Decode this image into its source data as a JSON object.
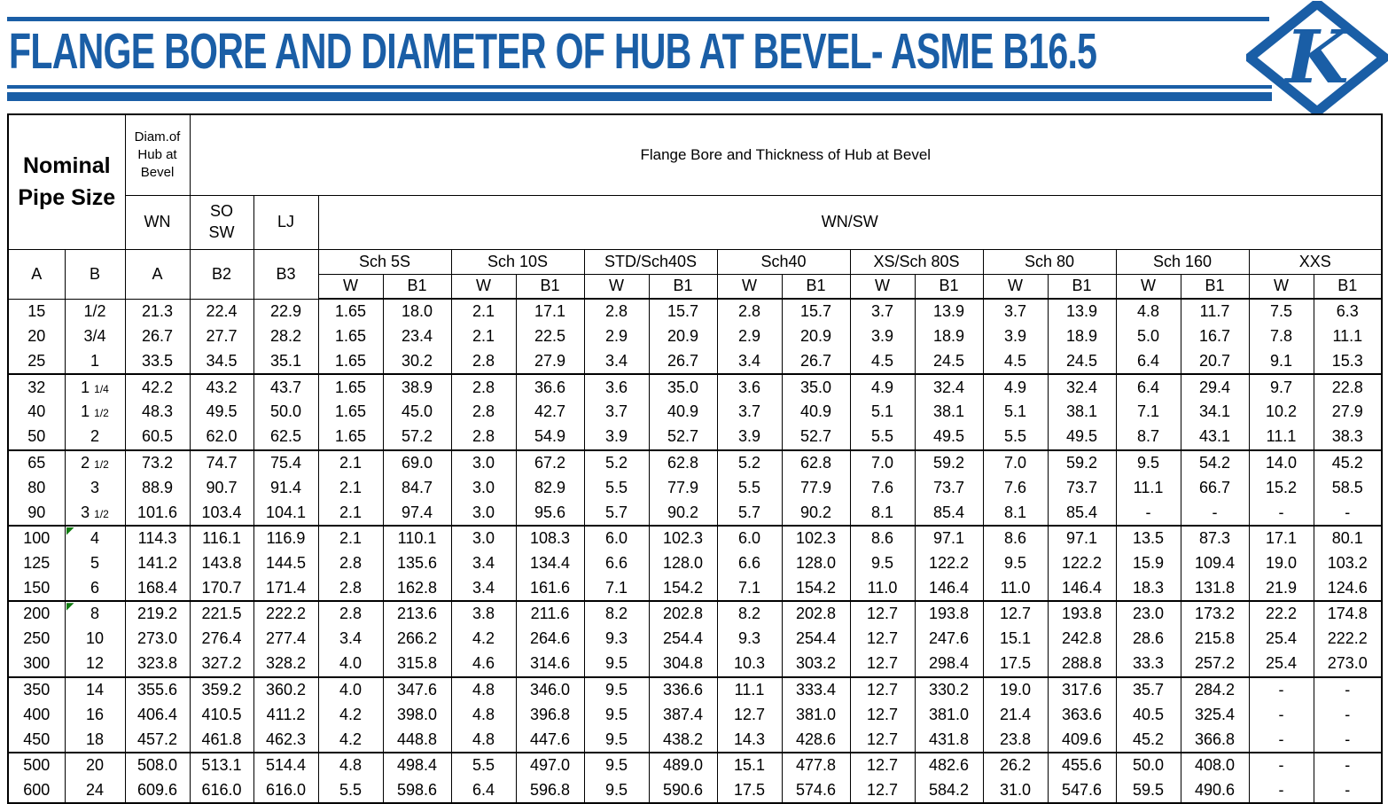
{
  "title": "FLANGE BORE AND DIAMETER OF HUB AT BEVEL- ASME B16.5",
  "logo": {
    "letter": "K"
  },
  "colors": {
    "accent_blue": "#1A5EA6",
    "marker_green": "#107C10",
    "grid_black": "#000000"
  },
  "table": {
    "headers": {
      "nominal_pipe_size": "Nominal\nPipe Size",
      "diam_of_hub": "Diam.of\nHub at\nBevel",
      "flange_bore": "Flange Bore and Thickness of Hub at Bevel",
      "wn": "WN",
      "so_sw": "SO\nSW",
      "lj": "LJ",
      "wn_sw": "WN/SW",
      "col_a": "A",
      "col_b": "B",
      "col_a_wn": "A",
      "col_b2": "B2",
      "col_b3": "B3",
      "schedules": [
        "Sch 5S",
        "Sch 10S",
        "STD/Sch40S",
        "Sch40",
        "XS/Sch 80S",
        "Sch 80",
        "Sch 160",
        "XXS"
      ],
      "sub_w": "W",
      "sub_b1": "B1"
    },
    "rows": [
      {
        "a": "15",
        "b": "1/2",
        "wn_a": "21.3",
        "b2": "22.4",
        "b3": "22.9",
        "vals": [
          "1.65",
          "18.0",
          "2.1",
          "17.1",
          "2.8",
          "15.7",
          "2.8",
          "15.7",
          "3.7",
          "13.9",
          "3.7",
          "13.9",
          "4.8",
          "11.7",
          "7.5",
          "6.3"
        ]
      },
      {
        "a": "20",
        "b": "3/4",
        "wn_a": "26.7",
        "b2": "27.7",
        "b3": "28.2",
        "vals": [
          "1.65",
          "23.4",
          "2.1",
          "22.5",
          "2.9",
          "20.9",
          "2.9",
          "20.9",
          "3.9",
          "18.9",
          "3.9",
          "18.9",
          "5.0",
          "16.7",
          "7.8",
          "11.1"
        ]
      },
      {
        "a": "25",
        "b": "1",
        "wn_a": "33.5",
        "b2": "34.5",
        "b3": "35.1",
        "vals": [
          "1.65",
          "30.2",
          "2.8",
          "27.9",
          "3.4",
          "26.7",
          "3.4",
          "26.7",
          "4.5",
          "24.5",
          "4.5",
          "24.5",
          "6.4",
          "20.7",
          "9.1",
          "15.3"
        ]
      },
      {
        "a": "32",
        "b": "1 1/4",
        "group_start": true,
        "wn_a": "42.2",
        "b2": "43.2",
        "b3": "43.7",
        "vals": [
          "1.65",
          "38.9",
          "2.8",
          "36.6",
          "3.6",
          "35.0",
          "3.6",
          "35.0",
          "4.9",
          "32.4",
          "4.9",
          "32.4",
          "6.4",
          "29.4",
          "9.7",
          "22.8"
        ]
      },
      {
        "a": "40",
        "b": "1 1/2",
        "wn_a": "48.3",
        "b2": "49.5",
        "b3": "50.0",
        "vals": [
          "1.65",
          "45.0",
          "2.8",
          "42.7",
          "3.7",
          "40.9",
          "3.7",
          "40.9",
          "5.1",
          "38.1",
          "5.1",
          "38.1",
          "7.1",
          "34.1",
          "10.2",
          "27.9"
        ]
      },
      {
        "a": "50",
        "b": "2",
        "wn_a": "60.5",
        "b2": "62.0",
        "b3": "62.5",
        "vals": [
          "1.65",
          "57.2",
          "2.8",
          "54.9",
          "3.9",
          "52.7",
          "3.9",
          "52.7",
          "5.5",
          "49.5",
          "5.5",
          "49.5",
          "8.7",
          "43.1",
          "11.1",
          "38.3"
        ]
      },
      {
        "a": "65",
        "b": "2 1/2",
        "group_start": true,
        "wn_a": "73.2",
        "b2": "74.7",
        "b3": "75.4",
        "vals": [
          "2.1",
          "69.0",
          "3.0",
          "67.2",
          "5.2",
          "62.8",
          "5.2",
          "62.8",
          "7.0",
          "59.2",
          "7.0",
          "59.2",
          "9.5",
          "54.2",
          "14.0",
          "45.2"
        ]
      },
      {
        "a": "80",
        "b": "3",
        "wn_a": "88.9",
        "b2": "90.7",
        "b3": "91.4",
        "vals": [
          "2.1",
          "84.7",
          "3.0",
          "82.9",
          "5.5",
          "77.9",
          "5.5",
          "77.9",
          "7.6",
          "73.7",
          "7.6",
          "73.7",
          "11.1",
          "66.7",
          "15.2",
          "58.5"
        ]
      },
      {
        "a": "90",
        "b": "3 1/2",
        "wn_a": "101.6",
        "b2": "103.4",
        "b3": "104.1",
        "vals": [
          "2.1",
          "97.4",
          "3.0",
          "95.6",
          "5.7",
          "90.2",
          "5.7",
          "90.2",
          "8.1",
          "85.4",
          "8.1",
          "85.4",
          "-",
          "-",
          "-",
          "-"
        ]
      },
      {
        "a": "100",
        "b": "4",
        "group_start": true,
        "marker": true,
        "wn_a": "114.3",
        "b2": "116.1",
        "b3": "116.9",
        "vals": [
          "2.1",
          "110.1",
          "3.0",
          "108.3",
          "6.0",
          "102.3",
          "6.0",
          "102.3",
          "8.6",
          "97.1",
          "8.6",
          "97.1",
          "13.5",
          "87.3",
          "17.1",
          "80.1"
        ]
      },
      {
        "a": "125",
        "b": "5",
        "wn_a": "141.2",
        "b2": "143.8",
        "b3": "144.5",
        "vals": [
          "2.8",
          "135.6",
          "3.4",
          "134.4",
          "6.6",
          "128.0",
          "6.6",
          "128.0",
          "9.5",
          "122.2",
          "9.5",
          "122.2",
          "15.9",
          "109.4",
          "19.0",
          "103.2"
        ]
      },
      {
        "a": "150",
        "b": "6",
        "wn_a": "168.4",
        "b2": "170.7",
        "b3": "171.4",
        "vals": [
          "2.8",
          "162.8",
          "3.4",
          "161.6",
          "7.1",
          "154.2",
          "7.1",
          "154.2",
          "11.0",
          "146.4",
          "11.0",
          "146.4",
          "18.3",
          "131.8",
          "21.9",
          "124.6"
        ]
      },
      {
        "a": "200",
        "b": "8",
        "group_start": true,
        "marker": true,
        "wn_a": "219.2",
        "b2": "221.5",
        "b3": "222.2",
        "vals": [
          "2.8",
          "213.6",
          "3.8",
          "211.6",
          "8.2",
          "202.8",
          "8.2",
          "202.8",
          "12.7",
          "193.8",
          "12.7",
          "193.8",
          "23.0",
          "173.2",
          "22.2",
          "174.8"
        ]
      },
      {
        "a": "250",
        "b": "10",
        "wn_a": "273.0",
        "b2": "276.4",
        "b3": "277.4",
        "vals": [
          "3.4",
          "266.2",
          "4.2",
          "264.6",
          "9.3",
          "254.4",
          "9.3",
          "254.4",
          "12.7",
          "247.6",
          "15.1",
          "242.8",
          "28.6",
          "215.8",
          "25.4",
          "222.2"
        ]
      },
      {
        "a": "300",
        "b": "12",
        "wn_a": "323.8",
        "b2": "327.2",
        "b3": "328.2",
        "vals": [
          "4.0",
          "315.8",
          "4.6",
          "314.6",
          "9.5",
          "304.8",
          "10.3",
          "303.2",
          "12.7",
          "298.4",
          "17.5",
          "288.8",
          "33.3",
          "257.2",
          "25.4",
          "273.0"
        ]
      },
      {
        "a": "350",
        "b": "14",
        "group_start": true,
        "wn_a": "355.6",
        "b2": "359.2",
        "b3": "360.2",
        "vals": [
          "4.0",
          "347.6",
          "4.8",
          "346.0",
          "9.5",
          "336.6",
          "11.1",
          "333.4",
          "12.7",
          "330.2",
          "19.0",
          "317.6",
          "35.7",
          "284.2",
          "-",
          "-"
        ]
      },
      {
        "a": "400",
        "b": "16",
        "wn_a": "406.4",
        "b2": "410.5",
        "b3": "411.2",
        "vals": [
          "4.2",
          "398.0",
          "4.8",
          "396.8",
          "9.5",
          "387.4",
          "12.7",
          "381.0",
          "12.7",
          "381.0",
          "21.4",
          "363.6",
          "40.5",
          "325.4",
          "-",
          "-"
        ]
      },
      {
        "a": "450",
        "b": "18",
        "wn_a": "457.2",
        "b2": "461.8",
        "b3": "462.3",
        "vals": [
          "4.2",
          "448.8",
          "4.8",
          "447.6",
          "9.5",
          "438.2",
          "14.3",
          "428.6",
          "12.7",
          "431.8",
          "23.8",
          "409.6",
          "45.2",
          "366.8",
          "-",
          "-"
        ]
      },
      {
        "a": "500",
        "b": "20",
        "group_start": true,
        "wn_a": "508.0",
        "b2": "513.1",
        "b3": "514.4",
        "vals": [
          "4.8",
          "498.4",
          "5.5",
          "497.0",
          "9.5",
          "489.0",
          "15.1",
          "477.8",
          "12.7",
          "482.6",
          "26.2",
          "455.6",
          "50.0",
          "408.0",
          "-",
          "-"
        ]
      },
      {
        "a": "600",
        "b": "24",
        "wn_a": "609.6",
        "b2": "616.0",
        "b3": "616.0",
        "vals": [
          "5.5",
          "598.6",
          "6.4",
          "596.8",
          "9.5",
          "590.6",
          "17.5",
          "574.6",
          "12.7",
          "584.2",
          "31.0",
          "547.6",
          "59.5",
          "490.6",
          "-",
          "-"
        ]
      }
    ]
  }
}
